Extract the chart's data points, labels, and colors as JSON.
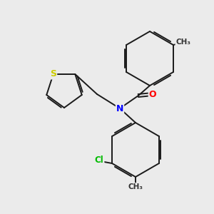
{
  "background_color": "#ebebeb",
  "bond_color": "#1a1a1a",
  "atom_colors": {
    "N": "#0000ff",
    "O": "#ff0000",
    "S": "#cccc00",
    "Cl": "#00bb00",
    "C": "#1a1a1a",
    "CH3": "#333333"
  },
  "figsize": [
    3.0,
    3.0
  ],
  "dpi": 100,
  "lw": 1.4
}
